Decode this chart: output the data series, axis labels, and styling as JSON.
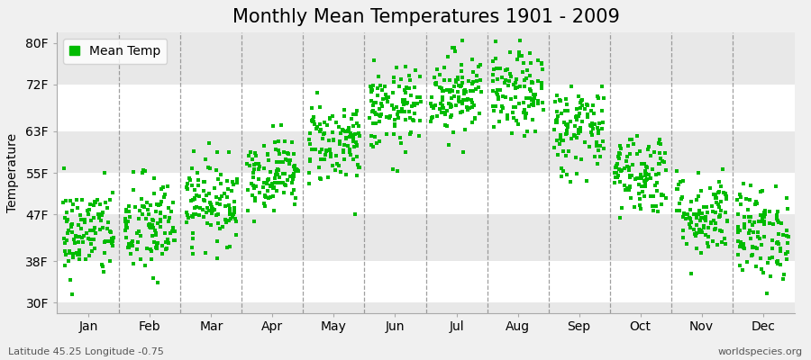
{
  "title": "Monthly Mean Temperatures 1901 - 2009",
  "ylabel": "Temperature",
  "xlabel_labels": [
    "Jan",
    "Feb",
    "Mar",
    "Apr",
    "May",
    "Jun",
    "Jul",
    "Aug",
    "Sep",
    "Oct",
    "Nov",
    "Dec"
  ],
  "ytick_labels": [
    "30F",
    "38F",
    "47F",
    "55F",
    "63F",
    "72F",
    "80F"
  ],
  "ytick_values": [
    30,
    38,
    47,
    55,
    63,
    72,
    80
  ],
  "ylim": [
    28,
    82
  ],
  "dot_color": "#00bb00",
  "dot_size": 8,
  "background_color": "#f0f0f0",
  "band_light": "#ffffff",
  "band_dark": "#e8e8e8",
  "dashed_color": "#888888",
  "legend_label": "Mean Temp",
  "footer_left": "Latitude 45.25 Longitude -0.75",
  "footer_right": "worldspecies.org",
  "title_fontsize": 15,
  "axis_fontsize": 10,
  "footer_fontsize": 8,
  "monthly_mean_F": [
    43.5,
    44.5,
    49.5,
    55.0,
    61.0,
    67.0,
    70.5,
    70.0,
    63.5,
    55.0,
    47.0,
    43.5
  ],
  "monthly_std_F": [
    4.5,
    5.0,
    4.0,
    3.5,
    4.0,
    4.0,
    4.0,
    4.0,
    4.5,
    4.0,
    4.0,
    4.5
  ],
  "n_years": 109,
  "seed": 42
}
